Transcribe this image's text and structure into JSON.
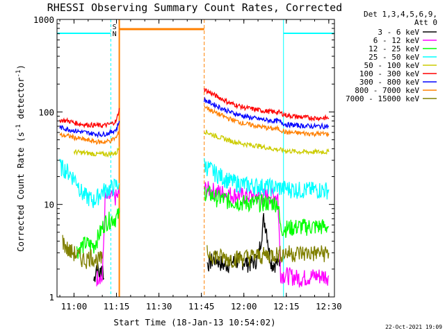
{
  "chart_data": {
    "type": "line",
    "title": "RHESSI Observing Summary Count Rates, Corrected",
    "xlabel": "Start Time (18-Jan-13 10:54:02)",
    "ylabel": "Corrected Count Rate (s",
    "ylabel_sup1": "-1",
    "ylabel_mid": " detector",
    "ylabel_sup2": "-1",
    "ylabel_end": ")",
    "y_scale": "log",
    "ylim": [
      1,
      1000
    ],
    "xlim": [
      "10:54",
      "12:32"
    ],
    "x_ticks": [
      "11:00",
      "11:15",
      "11:30",
      "11:45",
      "12:00",
      "12:15",
      "12:30"
    ],
    "y_ticks": [
      "1",
      "10",
      "100",
      "1000"
    ],
    "detector_header": [
      "Det 1,3,4,5,6,9,",
      "Att 0"
    ],
    "footer_date": "22-Oct-2021 19:09",
    "flags": {
      "saa": "S",
      "night": "N"
    },
    "grid": false,
    "legend_position": "right",
    "series": [
      {
        "name": "3 - 6 keV",
        "color": "#000000",
        "segments": [
          [
            [
              "11:07",
              1.5
            ],
            [
              "11:08",
              2.2
            ],
            [
              "11:09",
              1.7
            ],
            [
              "11:10",
              2.3
            ],
            [
              "11:10.5",
              1.6
            ]
          ],
          [
            [
              "11:47",
              2.3
            ],
            [
              "11:50",
              2.6
            ],
            [
              "11:53",
              2.2
            ],
            [
              "11:56",
              2.4
            ],
            [
              "11:59",
              2.5
            ],
            [
              "12:02",
              2.3
            ],
            [
              "12:05",
              2.6
            ],
            [
              "12:06",
              4.2
            ],
            [
              "12:07",
              7.0
            ],
            [
              "12:08",
              5.5
            ],
            [
              "12:09",
              3.0
            ],
            [
              "12:10",
              2.3
            ],
            [
              "12:13",
              2.4
            ]
          ]
        ]
      },
      {
        "name": "6 - 12 keV",
        "color": "#ff00ff",
        "segments": [
          [
            [
              "11:08",
              1.6
            ],
            [
              "11:09",
              1.8
            ],
            [
              "11:10",
              1.5
            ],
            [
              "11:11",
              11.5
            ],
            [
              "11:13",
              12
            ],
            [
              "11:15",
              12
            ],
            [
              "11:16",
              13
            ]
          ],
          [
            [
              "11:46",
              15
            ],
            [
              "11:50",
              14
            ],
            [
              "11:55",
              13
            ],
            [
              "12:00",
              12.5
            ],
            [
              "12:05",
              12.5
            ],
            [
              "12:10",
              12.5
            ],
            [
              "12:12",
              12.5
            ],
            [
              "12:13",
              1.8
            ],
            [
              "12:20",
              1.6
            ],
            [
              "12:25",
              1.7
            ],
            [
              "12:30",
              1.7
            ]
          ]
        ]
      },
      {
        "name": "12 - 25 keV",
        "color": "#00ff00",
        "segments": [
          [
            [
              "11:01",
              3.2
            ],
            [
              "11:04",
              3.8
            ],
            [
              "11:07",
              3.6
            ],
            [
              "11:11",
              6.5
            ],
            [
              "11:13",
              7
            ],
            [
              "11:15",
              7.2
            ],
            [
              "11:16",
              8
            ]
          ],
          [
            [
              "11:46",
              14
            ],
            [
              "11:50",
              12
            ],
            [
              "11:55",
              11
            ],
            [
              "12:00",
              10.5
            ],
            [
              "12:05",
              10.5
            ],
            [
              "12:10",
              10.5
            ],
            [
              "12:12",
              10.5
            ],
            [
              "12:13",
              5.5
            ],
            [
              "12:20",
              5.8
            ],
            [
              "12:25",
              5.8
            ],
            [
              "12:30",
              5.8
            ]
          ]
        ]
      },
      {
        "name": "25 - 50 keV",
        "color": "#00ffff",
        "segments": [
          [
            [
              "10:55",
              26
            ],
            [
              "10:57",
              24
            ],
            [
              "10:59",
              21
            ],
            [
              "11:01",
              18
            ],
            [
              "11:03",
              13
            ],
            [
              "11:05",
              12
            ],
            [
              "11:07",
              11
            ],
            [
              "11:10",
              14
            ],
            [
              "11:13",
              15
            ],
            [
              "11:16",
              17
            ]
          ],
          [
            [
              "11:46",
              27
            ],
            [
              "11:50",
              22
            ],
            [
              "11:55",
              18
            ],
            [
              "12:00",
              16.5
            ],
            [
              "12:05",
              16
            ],
            [
              "12:10",
              15.5
            ],
            [
              "12:15",
              15
            ],
            [
              "12:20",
              14.5
            ],
            [
              "12:25",
              14.5
            ],
            [
              "12:30",
              14.5
            ]
          ]
        ]
      },
      {
        "name": "50 - 100 keV",
        "color": "#cccc00",
        "segments": [
          [
            [
              "11:00",
              37
            ],
            [
              "11:04",
              36
            ],
            [
              "11:08",
              35
            ],
            [
              "11:12",
              35
            ],
            [
              "11:15",
              36
            ],
            [
              "11:16",
              42
            ]
          ],
          [
            [
              "11:46",
              62
            ],
            [
              "11:50",
              55
            ],
            [
              "11:55",
              49
            ],
            [
              "12:00",
              45
            ],
            [
              "12:05",
              43
            ],
            [
              "12:10",
              40
            ],
            [
              "12:15",
              38
            ],
            [
              "12:20",
              37
            ],
            [
              "12:25",
              37
            ],
            [
              "12:30",
              37
            ]
          ]
        ]
      },
      {
        "name": "100 - 300 keV",
        "color": "#ff0000",
        "segments": [
          [
            [
              "10:55",
              82
            ],
            [
              "10:58",
              80
            ],
            [
              "11:01",
              75
            ],
            [
              "11:04",
              73
            ],
            [
              "11:07",
              72
            ],
            [
              "11:10",
              71
            ],
            [
              "11:13",
              74
            ],
            [
              "11:15",
              80
            ],
            [
              "11:16",
              110
            ]
          ],
          [
            [
              "11:46",
              175
            ],
            [
              "11:50",
              150
            ],
            [
              "11:55",
              125
            ],
            [
              "12:00",
              112
            ],
            [
              "12:05",
              105
            ],
            [
              "12:10",
              100
            ],
            [
              "12:12",
              100
            ],
            [
              "12:15",
              92
            ],
            [
              "12:20",
              88
            ],
            [
              "12:25",
              86
            ],
            [
              "12:30",
              86
            ]
          ]
        ]
      },
      {
        "name": "300 - 800 keV",
        "color": "#0000ff",
        "segments": [
          [
            [
              "10:55",
              68
            ],
            [
              "10:58",
              65
            ],
            [
              "11:01",
              62
            ],
            [
              "11:04",
              60
            ],
            [
              "11:07",
              58
            ],
            [
              "11:10",
              57
            ],
            [
              "11:13",
              60
            ],
            [
              "11:15",
              65
            ],
            [
              "11:16",
              80
            ]
          ],
          [
            [
              "11:46",
              135
            ],
            [
              "11:50",
              118
            ],
            [
              "11:55",
              100
            ],
            [
              "12:00",
              90
            ],
            [
              "12:05",
              84
            ],
            [
              "12:10",
              80
            ],
            [
              "12:12",
              80
            ],
            [
              "12:15",
              73
            ],
            [
              "12:20",
              71
            ],
            [
              "12:25",
              70
            ],
            [
              "12:30",
              70
            ]
          ]
        ]
      },
      {
        "name": "800 - 7000 keV",
        "color": "#ff8000",
        "segments": [
          [
            [
              "10:55",
              56
            ],
            [
              "10:58",
              55
            ],
            [
              "11:01",
              52
            ],
            [
              "11:04",
              50
            ],
            [
              "11:07",
              48
            ],
            [
              "11:10",
              47
            ],
            [
              "11:13",
              49
            ],
            [
              "11:15",
              53
            ],
            [
              "11:16",
              62
            ]
          ],
          [
            [
              "11:46",
              115
            ],
            [
              "11:50",
              98
            ],
            [
              "11:55",
              84
            ],
            [
              "12:00",
              75
            ],
            [
              "12:05",
              70
            ],
            [
              "12:10",
              66
            ],
            [
              "12:12",
              66
            ],
            [
              "12:15",
              60
            ],
            [
              "12:20",
              59
            ],
            [
              "12:25",
              58
            ],
            [
              "12:30",
              58
            ]
          ]
        ]
      },
      {
        "name": "7000 - 15000 keV",
        "color": "#808000",
        "segments": [
          [
            [
              "10:56",
              4.0
            ],
            [
              "10:58",
              3.2
            ],
            [
              "11:00",
              3.0
            ],
            [
              "11:02",
              2.7
            ],
            [
              "11:04",
              2.5
            ],
            [
              "11:06",
              2.8
            ],
            [
              "11:08",
              2.5
            ],
            [
              "11:10",
              2.6
            ]
          ],
          [
            [
              "11:47",
              3.0
            ],
            [
              "11:50",
              2.8
            ],
            [
              "11:55",
              2.6
            ],
            [
              "12:00",
              2.7
            ],
            [
              "12:05",
              2.8
            ],
            [
              "12:10",
              2.9
            ],
            [
              "12:15",
              3.0
            ],
            [
              "12:20",
              3.0
            ],
            [
              "12:25",
              3.0
            ],
            [
              "12:30",
              3.0
            ]
          ]
        ]
      }
    ],
    "saa_markers": [
      [
        "11:16",
        "11:46"
      ]
    ],
    "night_markers": [
      [
        "10:54",
        "11:13"
      ],
      [
        "12:14",
        "12:32"
      ]
    ]
  }
}
